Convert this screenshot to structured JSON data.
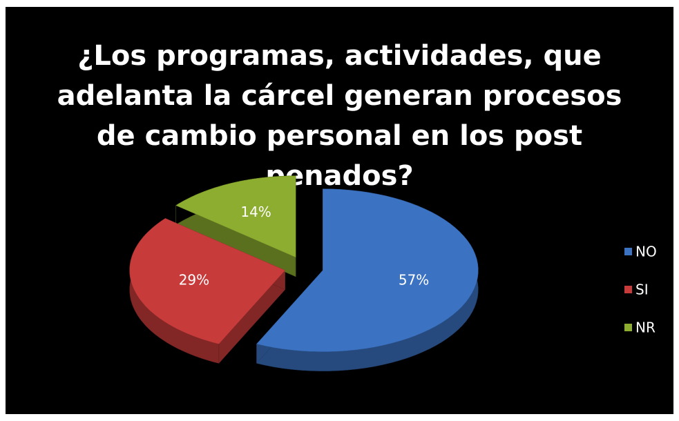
{
  "chart_data": {
    "type": "pie",
    "title": "¿Los programas, actividades, que adelanta la cárcel generan procesos de cambio personal en los post penados?",
    "categories": [
      "NO",
      "SI",
      "NR"
    ],
    "values": [
      57,
      29,
      14
    ],
    "value_labels": [
      "57%",
      "29%",
      "14%"
    ],
    "colors": [
      "#3b72c2",
      "#c83b3b",
      "#8cad2f"
    ],
    "legend": "right"
  }
}
